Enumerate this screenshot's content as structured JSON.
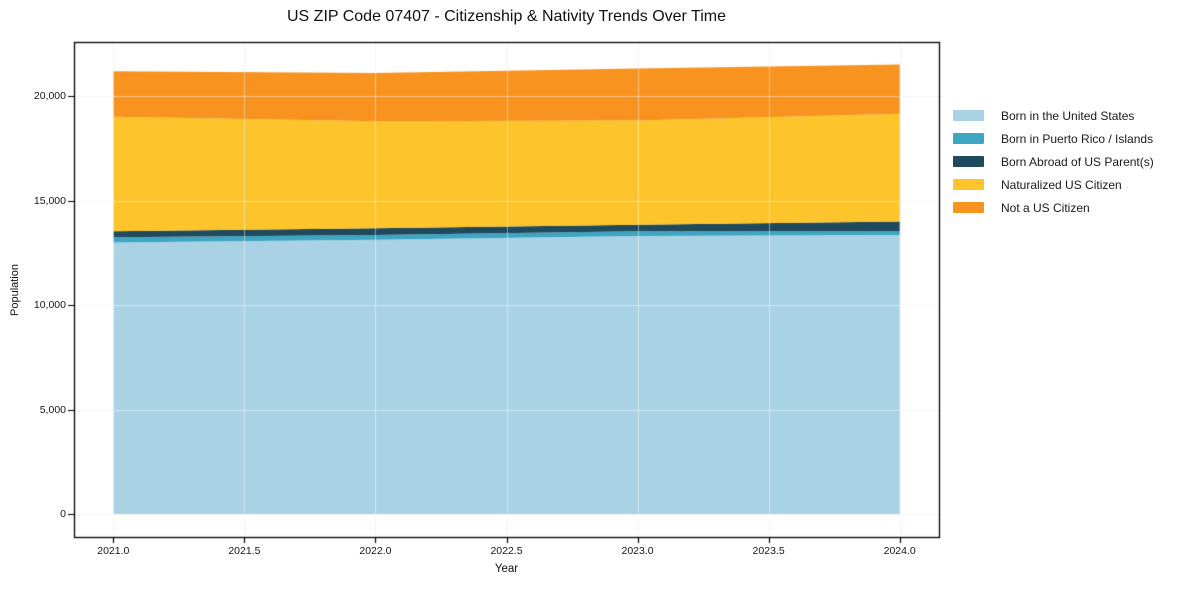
{
  "title": "US ZIP Code 07407 - Citizenship & Nativity Trends Over Time",
  "chart_data": {
    "type": "area",
    "stacked": true,
    "title": "US ZIP Code 07407 - Citizenship & Nativity Trends Over Time",
    "xlabel": "Year",
    "ylabel": "Population",
    "x": [
      2021,
      2022,
      2023,
      2024
    ],
    "series": [
      {
        "name": "Born in the United States",
        "color": "#a9d2e5",
        "values": [
          13000,
          13130,
          13310,
          13360
        ]
      },
      {
        "name": "Born in Puerto Rico / Islands",
        "color": "#3ea5c2",
        "values": [
          250,
          230,
          230,
          190
        ]
      },
      {
        "name": "Born Abroad of US Parent(s)",
        "color": "#1f495c",
        "values": [
          290,
          320,
          310,
          450
        ]
      },
      {
        "name": "Naturalized US Citizen",
        "color": "#fdc42b",
        "values": [
          5480,
          5120,
          4990,
          5170
        ]
      },
      {
        "name": "Not a US Citizen",
        "color": "#f7931e",
        "values": [
          2180,
          2320,
          2490,
          2350
        ]
      }
    ],
    "x_ticks": {
      "values": [
        2021.0,
        2021.5,
        2022.0,
        2022.5,
        2023.0,
        2023.5,
        2024.0
      ],
      "labels": [
        "2021.0",
        "2021.5",
        "2022.0",
        "2022.5",
        "2023.0",
        "2023.5",
        "2024.0"
      ]
    },
    "y_ticks": {
      "values": [
        0,
        5000,
        10000,
        15000,
        20000
      ],
      "labels": [
        "0",
        "5,000",
        "10,000",
        "15,000",
        "20,000"
      ]
    },
    "xlim": [
      2020.85,
      2024.15
    ],
    "ylim": [
      -1100,
      22600
    ],
    "grid": true,
    "legend_position": "right",
    "axis_color": "#000000",
    "grid_color": "#e9e9e9"
  }
}
